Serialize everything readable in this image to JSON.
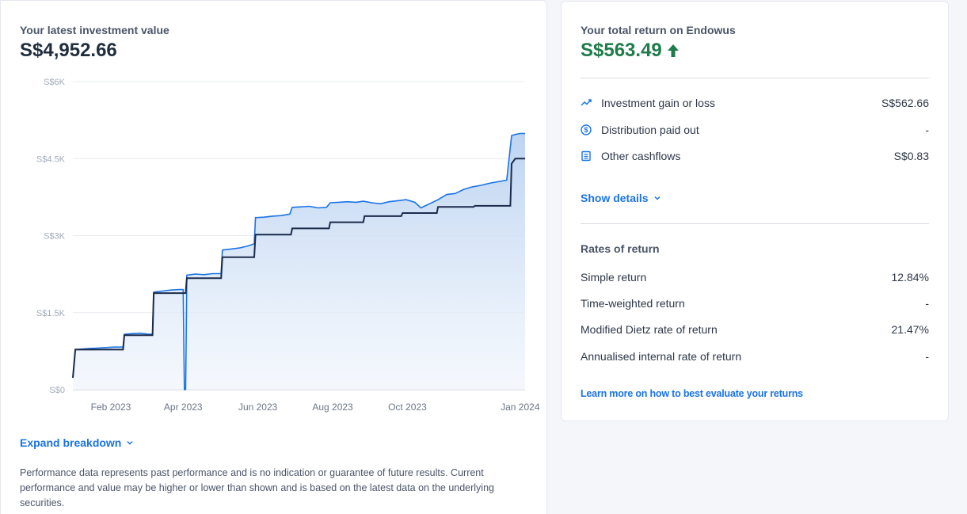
{
  "investment": {
    "title": "Your latest investment value",
    "value": "S$4,952.66",
    "expand_label": "Expand breakdown",
    "disclaimer": "Performance data represents past performance and is no indication or guarantee of future results. Current performance and value may be higher or lower than shown and is based on the latest data on the underlying securities."
  },
  "chart_data": {
    "type": "line",
    "y_ticks": [
      "S$0",
      "S$1.5K",
      "S$3K",
      "S$4.5K",
      "S$6K"
    ],
    "y_tick_values": [
      0,
      1500,
      3000,
      4500,
      6000
    ],
    "ylim": [
      0,
      6000
    ],
    "x_ticks": [
      "Feb 2023",
      "Apr 2023",
      "Jun 2023",
      "Aug 2023",
      "Oct 2023",
      "Jan 2024"
    ],
    "x_tick_dates": [
      "2023-02-01",
      "2023-04-01",
      "2023-06-01",
      "2023-08-01",
      "2023-10-01",
      "2024-01-01"
    ],
    "xlim": [
      "2023-01-01",
      "2024-01-05"
    ],
    "grid": true,
    "series": [
      {
        "key": "value",
        "color": "#1a73e8",
        "points": [
          [
            "2023-01-01",
            230
          ],
          [
            "2023-01-03",
            780
          ],
          [
            "2023-01-08",
            790
          ],
          [
            "2023-01-14",
            800
          ],
          [
            "2023-01-21",
            810
          ],
          [
            "2023-01-28",
            820
          ],
          [
            "2023-02-04",
            830
          ],
          [
            "2023-02-11",
            830
          ],
          [
            "2023-02-12",
            1080
          ],
          [
            "2023-02-18",
            1090
          ],
          [
            "2023-02-25",
            1100
          ],
          [
            "2023-03-04",
            1080
          ],
          [
            "2023-03-07",
            1080
          ],
          [
            "2023-03-08",
            1900
          ],
          [
            "2023-03-15",
            1920
          ],
          [
            "2023-03-22",
            1940
          ],
          [
            "2023-03-29",
            1950
          ],
          [
            "2023-04-01",
            1950
          ],
          [
            "2023-04-02",
            0
          ],
          [
            "2023-04-03",
            0
          ],
          [
            "2023-04-04",
            2230
          ],
          [
            "2023-04-11",
            2250
          ],
          [
            "2023-04-18",
            2240
          ],
          [
            "2023-04-25",
            2260
          ],
          [
            "2023-05-02",
            2260
          ],
          [
            "2023-05-03",
            2720
          ],
          [
            "2023-05-10",
            2740
          ],
          [
            "2023-05-17",
            2760
          ],
          [
            "2023-05-24",
            2800
          ],
          [
            "2023-05-29",
            2840
          ],
          [
            "2023-05-30",
            3350
          ],
          [
            "2023-06-06",
            3360
          ],
          [
            "2023-06-13",
            3380
          ],
          [
            "2023-06-20",
            3390
          ],
          [
            "2023-06-27",
            3420
          ],
          [
            "2023-06-29",
            3550
          ],
          [
            "2023-07-06",
            3560
          ],
          [
            "2023-07-13",
            3570
          ],
          [
            "2023-07-20",
            3540
          ],
          [
            "2023-07-27",
            3550
          ],
          [
            "2023-07-30",
            3640
          ],
          [
            "2023-08-06",
            3650
          ],
          [
            "2023-08-13",
            3660
          ],
          [
            "2023-08-20",
            3650
          ],
          [
            "2023-08-26",
            3670
          ],
          [
            "2023-09-02",
            3640
          ],
          [
            "2023-09-09",
            3620
          ],
          [
            "2023-09-16",
            3660
          ],
          [
            "2023-09-23",
            3680
          ],
          [
            "2023-09-30",
            3700
          ],
          [
            "2023-10-07",
            3650
          ],
          [
            "2023-10-12",
            3540
          ],
          [
            "2023-10-19",
            3620
          ],
          [
            "2023-10-26",
            3700
          ],
          [
            "2023-11-02",
            3800
          ],
          [
            "2023-11-09",
            3820
          ],
          [
            "2023-11-16",
            3900
          ],
          [
            "2023-11-23",
            3950
          ],
          [
            "2023-11-30",
            3980
          ],
          [
            "2023-12-07",
            4020
          ],
          [
            "2023-12-14",
            4050
          ],
          [
            "2023-12-21",
            4080
          ],
          [
            "2023-12-25",
            4950
          ],
          [
            "2023-12-28",
            4970
          ],
          [
            "2024-01-01",
            4990
          ],
          [
            "2024-01-05",
            4990
          ]
        ]
      },
      {
        "key": "deposits",
        "color": "#1b2b4b",
        "points": [
          [
            "2023-01-01",
            230
          ],
          [
            "2023-01-03",
            780
          ],
          [
            "2023-02-11",
            780
          ],
          [
            "2023-02-12",
            1060
          ],
          [
            "2023-03-07",
            1060
          ],
          [
            "2023-03-08",
            1880
          ],
          [
            "2023-04-03",
            1880
          ],
          [
            "2023-04-04",
            2170
          ],
          [
            "2023-05-02",
            2170
          ],
          [
            "2023-05-03",
            2580
          ],
          [
            "2023-05-29",
            2580
          ],
          [
            "2023-05-30",
            3020
          ],
          [
            "2023-06-28",
            3020
          ],
          [
            "2023-06-29",
            3140
          ],
          [
            "2023-07-29",
            3140
          ],
          [
            "2023-07-30",
            3260
          ],
          [
            "2023-08-26",
            3260
          ],
          [
            "2023-08-27",
            3380
          ],
          [
            "2023-09-26",
            3380
          ],
          [
            "2023-09-27",
            3440
          ],
          [
            "2023-10-25",
            3440
          ],
          [
            "2023-10-26",
            3560
          ],
          [
            "2023-11-24",
            3560
          ],
          [
            "2023-11-25",
            3580
          ],
          [
            "2023-12-24",
            3580
          ],
          [
            "2023-12-25",
            4400
          ],
          [
            "2023-12-28",
            4500
          ],
          [
            "2024-01-05",
            4500
          ]
        ]
      }
    ]
  },
  "returns": {
    "title": "Your total return on Endowus",
    "value": "S$563.49",
    "accent_color": "#1e7b4a",
    "breakdown": [
      {
        "icon": "trend-line-icon",
        "label": "Investment gain or loss",
        "value": "S$562.66"
      },
      {
        "icon": "dollar-coin-icon",
        "label": "Distribution paid out",
        "value": "-"
      },
      {
        "icon": "ledger-icon",
        "label": "Other cashflows",
        "value": "S$0.83"
      }
    ],
    "show_details_label": "Show details",
    "rates_heading": "Rates of return",
    "rates": [
      {
        "label": "Simple return",
        "value": "12.84%"
      },
      {
        "label": "Time-weighted return",
        "value": "-"
      },
      {
        "label": "Modified Dietz rate of return",
        "value": "21.47%"
      },
      {
        "label": "Annualised internal rate of return",
        "value": "-"
      }
    ],
    "learn_more_label": "Learn more on how to best evaluate your returns"
  }
}
